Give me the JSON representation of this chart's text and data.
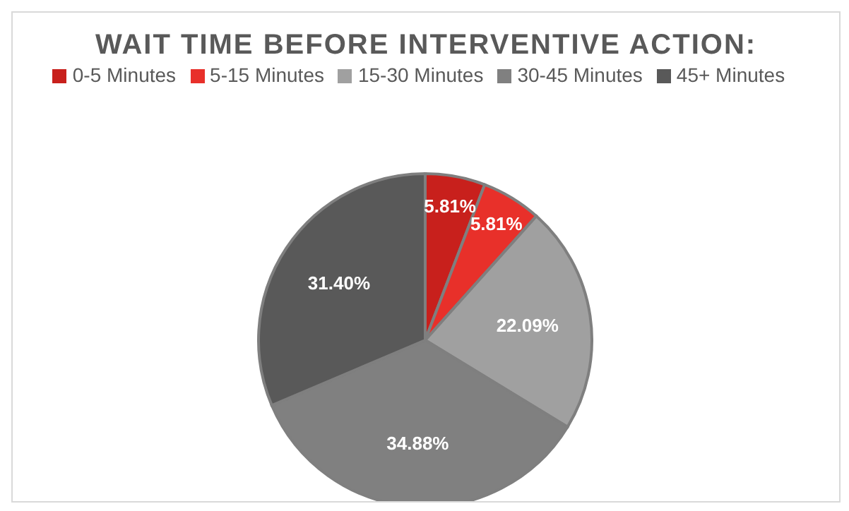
{
  "chart_data": {
    "type": "pie",
    "title": "WAIT TIME BEFORE INTERVENTIVE ACTION:",
    "categories": [
      "0-5 Minutes",
      "5-15 Minutes",
      "15-30 Minutes",
      "30-45 Minutes",
      "45+ Minutes"
    ],
    "values": [
      5.81,
      5.81,
      22.09,
      34.88,
      31.4
    ],
    "colors": [
      "#c8201c",
      "#e8302a",
      "#a0a0a0",
      "#808080",
      "#595959"
    ],
    "value_labels": [
      "5.81%",
      "5.81%",
      "22.09%",
      "34.88%",
      "31.40%"
    ],
    "legend": "top"
  }
}
